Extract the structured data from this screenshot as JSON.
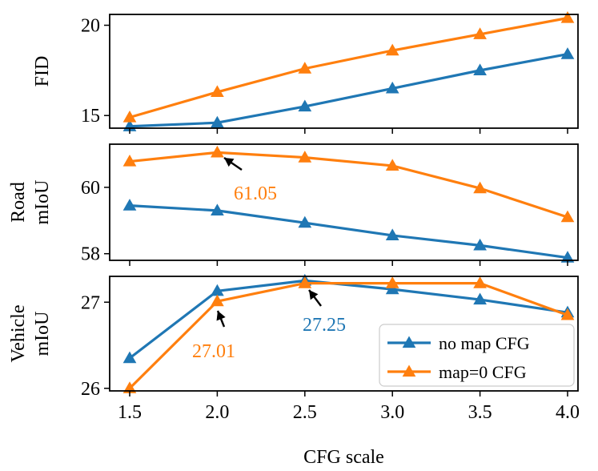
{
  "chart_data": {
    "type": "line",
    "x": [
      1.5,
      2.0,
      2.5,
      3.0,
      3.5,
      4.0
    ],
    "x_ticks": [
      "1.5",
      "2.0",
      "2.5",
      "3.0",
      "3.5",
      "4.0"
    ],
    "xlabel": "CFG scale",
    "colors": {
      "no_map": "#1f77b4",
      "map0": "#ff7f0e"
    },
    "legend": {
      "placement": "lower-right of bottom panel",
      "entries": [
        "no map CFG",
        "map=0 CFG"
      ]
    },
    "panels": [
      {
        "ylabel": [
          "FID"
        ],
        "ylim": [
          14.3,
          20.6
        ],
        "yticks": [
          15,
          20
        ],
        "ytick_labels": [
          "15",
          "20"
        ],
        "series": [
          {
            "name": "no map CFG",
            "values": [
              14.4,
              14.6,
              15.5,
              16.5,
              17.5,
              18.4
            ]
          },
          {
            "name": "map=0 CFG",
            "values": [
              14.9,
              16.3,
              17.6,
              18.6,
              19.5,
              20.4
            ]
          }
        ],
        "annotations": []
      },
      {
        "ylabel": [
          "Road",
          "mIoU"
        ],
        "ylim": [
          57.8,
          61.3
        ],
        "yticks": [
          58,
          60
        ],
        "ytick_labels": [
          "58",
          "60"
        ],
        "series": [
          {
            "name": "no map CFG",
            "values": [
              59.45,
              59.3,
              58.93,
              58.55,
              58.25,
              57.88
            ]
          },
          {
            "name": "map=0 CFG",
            "values": [
              60.78,
              61.05,
              60.9,
              60.65,
              59.97,
              59.1
            ]
          }
        ],
        "annotations": [
          {
            "text": "61.05",
            "series": "map=0 CFG",
            "x": 2.0,
            "y": 61.05
          }
        ]
      },
      {
        "ylabel": [
          "Vehicle",
          "mIoU"
        ],
        "ylim": [
          25.97,
          27.3
        ],
        "yticks": [
          26,
          27
        ],
        "ytick_labels": [
          "26",
          "27"
        ],
        "series": [
          {
            "name": "no map CFG",
            "values": [
              26.35,
              27.13,
              27.25,
              27.15,
              27.03,
              26.88
            ]
          },
          {
            "name": "map=0 CFG",
            "values": [
              26.0,
              27.01,
              27.22,
              27.22,
              27.22,
              26.85
            ]
          }
        ],
        "annotations": [
          {
            "text": "27.01",
            "series": "map=0 CFG",
            "x": 2.0,
            "y": 27.01
          },
          {
            "text": "27.25",
            "series": "no map CFG",
            "x": 2.5,
            "y": 27.25
          }
        ]
      }
    ]
  }
}
